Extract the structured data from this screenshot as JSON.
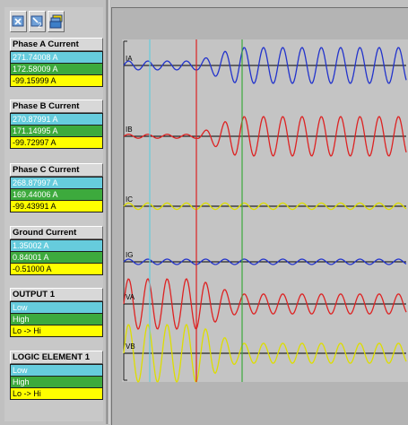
{
  "toolbar": {
    "buttons": [
      {
        "icon": "cursor-1-icon",
        "label": ""
      },
      {
        "icon": "cursor-2-icon",
        "label": "2"
      },
      {
        "icon": "stack-layers-icon",
        "label": ""
      }
    ]
  },
  "groups": [
    {
      "title": "Phase A Current",
      "values": [
        "271.74008 A",
        "172.58009 A",
        "-99.15999 A"
      ]
    },
    {
      "title": "Phase B Current",
      "values": [
        "270.87991 A",
        "171.14995 A",
        "-99.72997 A"
      ]
    },
    {
      "title": "Phase C Current",
      "values": [
        "268.87997 A",
        "169.44006 A",
        "-99.43991 A"
      ]
    },
    {
      "title": "Ground Current",
      "values": [
        "1.35002 A",
        "0.84001 A",
        "-0.51000 A"
      ]
    },
    {
      "title": "OUTPUT 1",
      "values": [
        "Low",
        "High",
        "Lo -> Hi"
      ]
    },
    {
      "title": "LOGIC ELEMENT 1",
      "values": [
        "Low",
        "High",
        "Lo -> Hi"
      ]
    }
  ],
  "colors": {
    "cursor1": "#66ccdd",
    "cursor2": "#3daa3d",
    "difference": "#ffff00",
    "trigger": "#dd2222",
    "ia": "#2233cc",
    "ib": "#dd2222",
    "ic": "#dddd00",
    "ig": "#2233cc",
    "va": "#dd2222",
    "vb": "#dddd00"
  },
  "traces": [
    {
      "label": "IA",
      "color_key": "ia",
      "pre_amp": 0.25,
      "post_amp": 1.0,
      "growth": "ramp"
    },
    {
      "label": "IB",
      "color_key": "ib",
      "pre_amp": 0.1,
      "post_amp": 1.0,
      "growth": "ramp"
    },
    {
      "label": "IC",
      "color_key": "ic",
      "pre_amp": 0.3,
      "post_amp": 0.3,
      "growth": "flat"
    },
    {
      "label": "IG",
      "color_key": "ig",
      "pre_amp": 0.3,
      "post_amp": 0.3,
      "growth": "flat"
    },
    {
      "label": "VA",
      "color_key": "va",
      "pre_amp": 1.0,
      "post_amp": 0.4,
      "growth": "decay"
    },
    {
      "label": "VB",
      "color_key": "vb",
      "pre_amp": 1.0,
      "post_amp": 0.35,
      "growth": "decay"
    }
  ]
}
